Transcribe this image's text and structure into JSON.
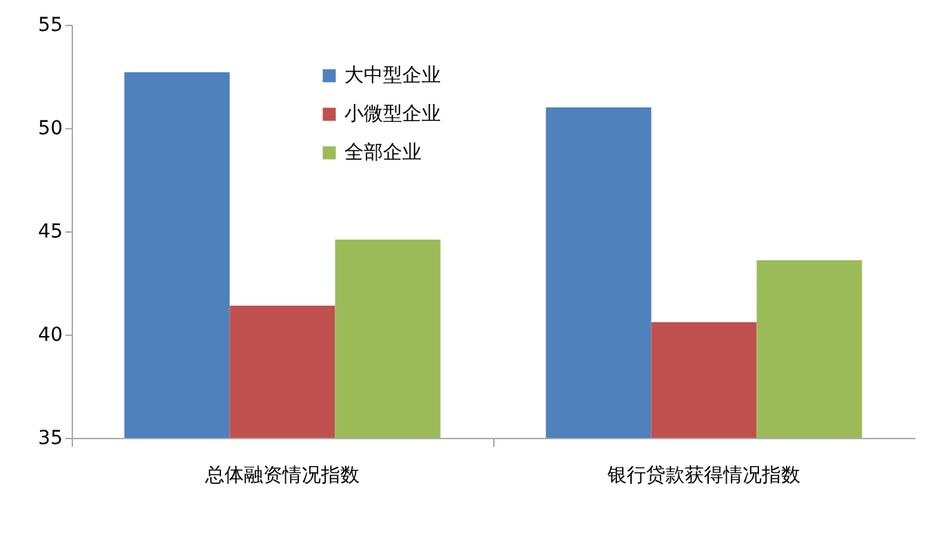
{
  "chart_data": {
    "type": "bar",
    "categories": [
      "总体融资情况指数",
      "银行贷款获得情况指数"
    ],
    "series": [
      {
        "name": "大中型企业",
        "color": "#4f81bd",
        "values": [
          52.7,
          51.0
        ]
      },
      {
        "name": "小微型企业",
        "color": "#c0504d",
        "values": [
          41.4,
          40.6
        ]
      },
      {
        "name": "全部企业",
        "color": "#9bbb59",
        "values": [
          44.6,
          43.6
        ]
      }
    ],
    "ylim": [
      35,
      55
    ],
    "yticks": [
      35,
      40,
      45,
      50,
      55
    ],
    "grid": false,
    "legend": "top"
  }
}
